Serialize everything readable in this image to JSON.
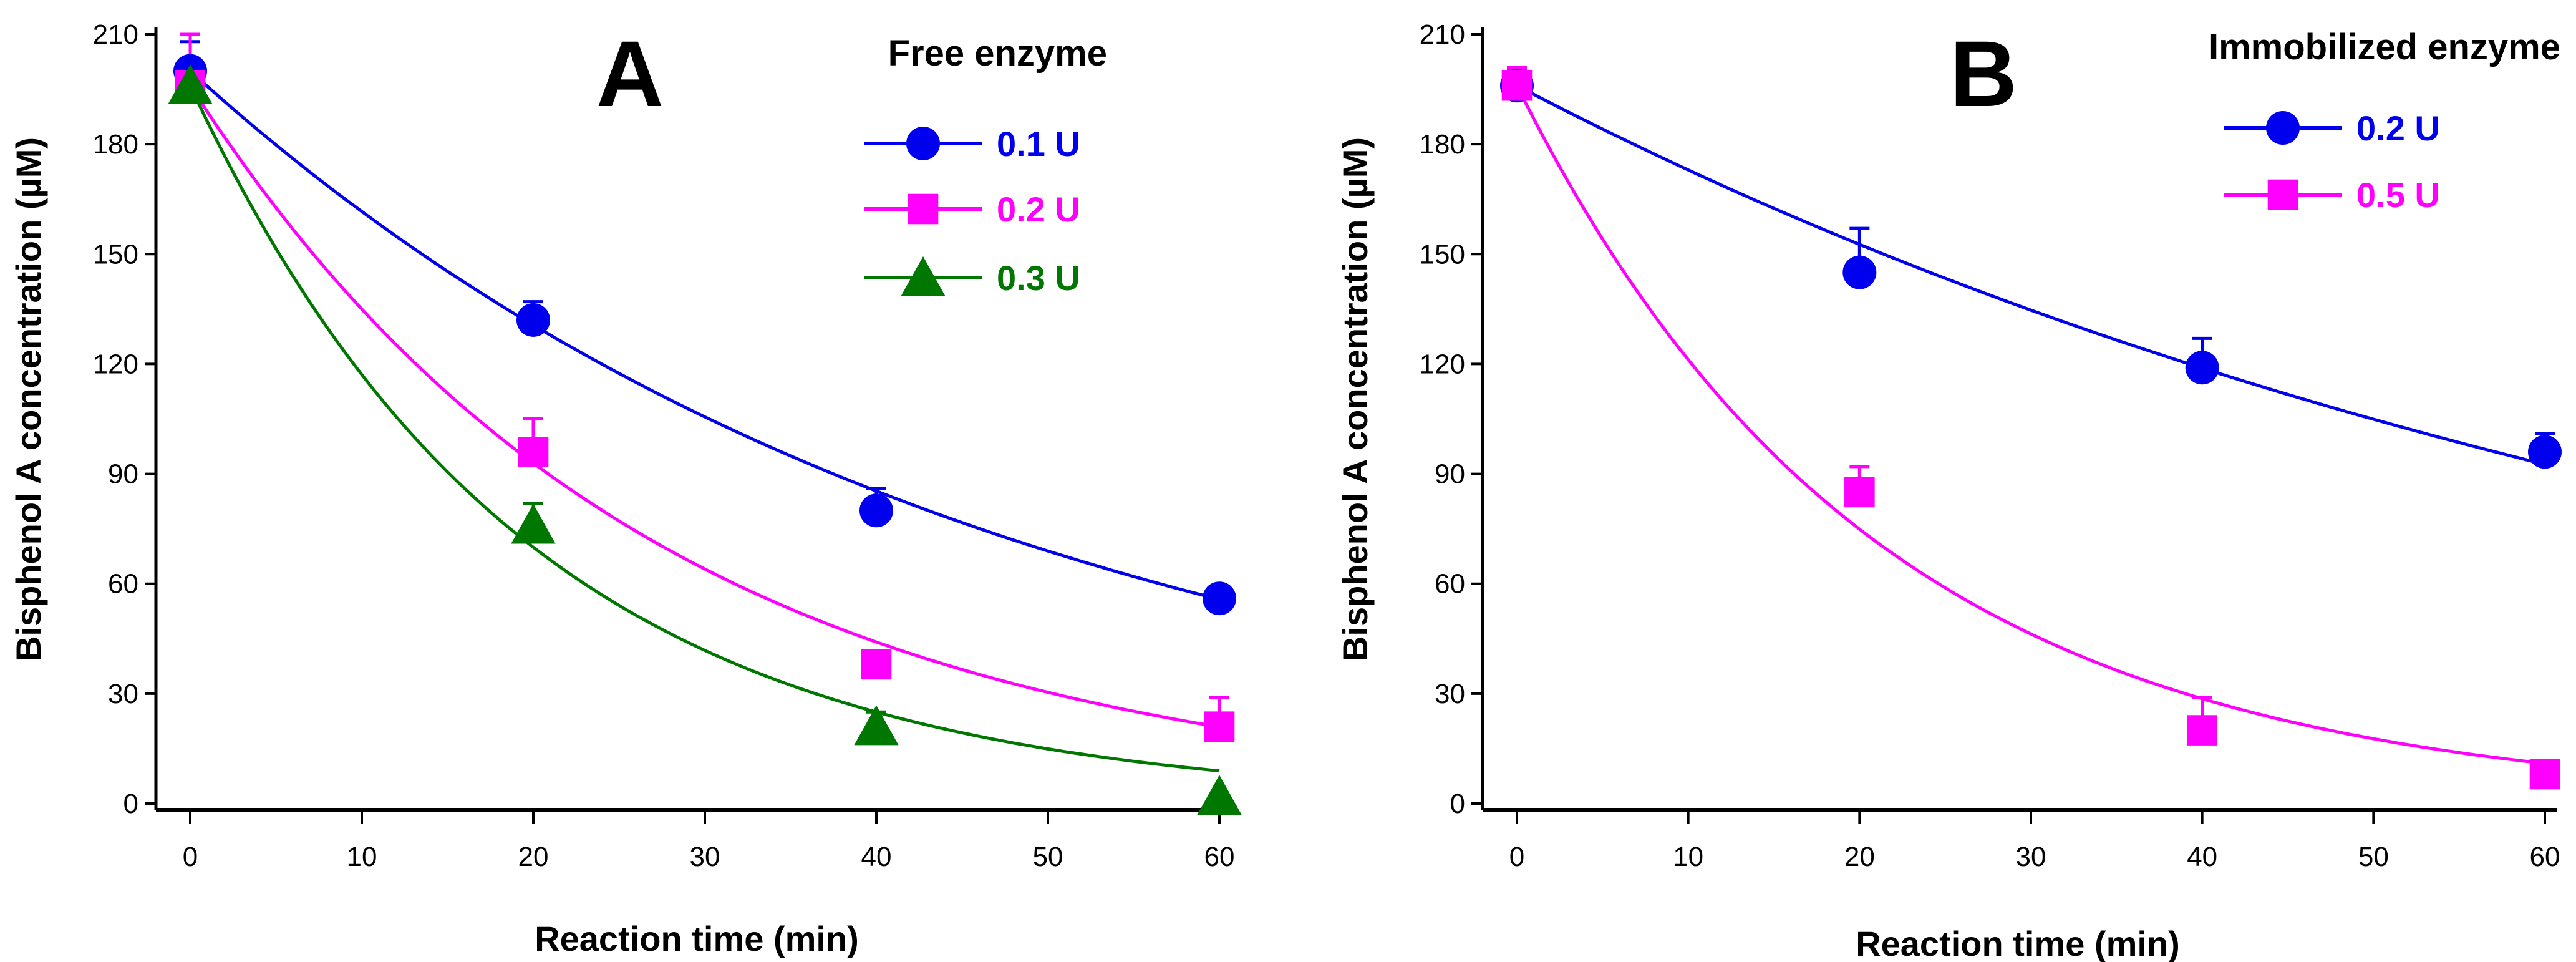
{
  "chart_data": [
    {
      "type": "line",
      "panel": "A",
      "legend_title": "Free enzyme",
      "xlabel": "Reaction time (min)",
      "ylabel": "Bisphenol A concentration (µM)",
      "xlim": [
        0,
        60
      ],
      "ylim": [
        0,
        210
      ],
      "xticks": [
        0,
        10,
        20,
        30,
        40,
        50,
        60
      ],
      "yticks": [
        0,
        30,
        60,
        90,
        120,
        150,
        180,
        210
      ],
      "legend_position": "top-right",
      "series": [
        {
          "name": "0.1 U",
          "color": "#0000ee",
          "marker": "circle",
          "x": [
            0,
            20,
            40,
            60
          ],
          "y": [
            200,
            132,
            80,
            56
          ],
          "err": [
            8,
            5,
            6,
            0
          ],
          "fit": {
            "c0": 200,
            "k": 0.0213
          }
        },
        {
          "name": "0.2 U",
          "color": "#ff00ff",
          "marker": "square",
          "x": [
            0,
            20,
            40,
            60
          ],
          "y": [
            196,
            96,
            38,
            21
          ],
          "err": [
            14,
            9,
            0,
            8
          ],
          "fit": {
            "c0": 196,
            "k": 0.0373
          }
        },
        {
          "name": "0.3 U",
          "color": "#007700",
          "marker": "triangle",
          "x": [
            0,
            20,
            40,
            60
          ],
          "y": [
            196,
            76,
            21,
            2
          ],
          "err": [
            0,
            6,
            4,
            0
          ],
          "fit": {
            "c0": 196,
            "k": 0.0515
          }
        }
      ]
    },
    {
      "type": "line",
      "panel": "B",
      "legend_title": "Immobilized enzyme",
      "xlabel": "Reaction time (min)",
      "ylabel": "Bisphenol A concentration (µM)",
      "xlim": [
        0,
        60
      ],
      "ylim": [
        0,
        210
      ],
      "xticks": [
        0,
        10,
        20,
        30,
        40,
        50,
        60
      ],
      "yticks": [
        0,
        30,
        60,
        90,
        120,
        150,
        180,
        210
      ],
      "legend_position": "top-right",
      "series": [
        {
          "name": "0.2 U",
          "color": "#0000ee",
          "marker": "circle",
          "x": [
            0,
            20,
            40,
            60
          ],
          "y": [
            196,
            145,
            119,
            96
          ],
          "err": [
            4,
            12,
            8,
            5
          ],
          "fit": {
            "c0": 196,
            "k": 0.0125
          }
        },
        {
          "name": "0.5 U",
          "color": "#ff00ff",
          "marker": "square",
          "x": [
            0,
            20,
            40,
            60
          ],
          "y": [
            196,
            85,
            20,
            8
          ],
          "err": [
            5,
            7,
            9,
            0
          ],
          "fit": {
            "c0": 196,
            "k": 0.0481
          }
        }
      ]
    }
  ]
}
